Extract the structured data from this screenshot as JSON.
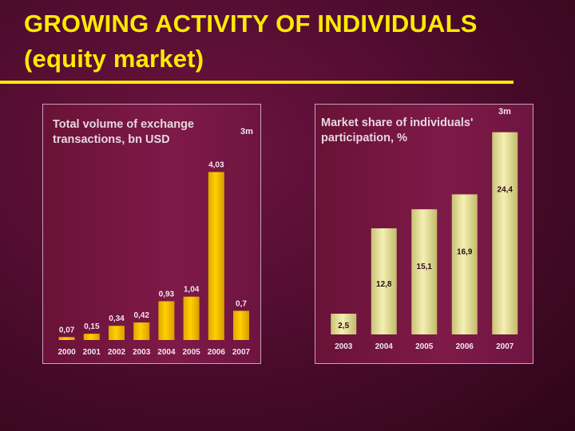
{
  "slide": {
    "title_line1": "GROWING ACTIVITY OF INDIVIDUALS",
    "title_line2": "(equity market)",
    "title_color": "#ffea00"
  },
  "chart_data": [
    {
      "type": "bar",
      "title": "Total volume of exchange transactions, bn USD",
      "title_line1": "Total volume of exchange",
      "title_line2": "transactions, bn USD",
      "note": "3m",
      "categories": [
        "2000",
        "2001",
        "2002",
        "2003",
        "2004",
        "2005",
        "2006",
        "2007"
      ],
      "values": [
        0.07,
        0.15,
        0.34,
        0.42,
        0.93,
        1.04,
        4.03,
        0.7
      ],
      "value_labels": [
        "0,07",
        "0,15",
        "0,34",
        "0,42",
        "0,93",
        "1,04",
        "4,03",
        "0,7"
      ],
      "ylim": [
        0,
        4.5
      ],
      "grid": false,
      "bar_color": "#f5c400",
      "label_color": "#f2e6ee"
    },
    {
      "type": "bar",
      "title": "Market share of individuals' participation, %",
      "title_line1": "Market share of individuals'",
      "title_line2": "participation,  %",
      "note": "3m",
      "categories": [
        "2003",
        "2004",
        "2005",
        "2006",
        "2007"
      ],
      "values": [
        2.5,
        12.8,
        15.1,
        16.9,
        24.4
      ],
      "value_labels": [
        "2,5",
        "12,8",
        "15,1",
        "16,9",
        "24,4"
      ],
      "ylim": [
        0,
        26
      ],
      "grid": false,
      "bar_color": "#e8e396",
      "label_color": "#2a0a18",
      "category_label_color": "#f2e6ee"
    }
  ]
}
